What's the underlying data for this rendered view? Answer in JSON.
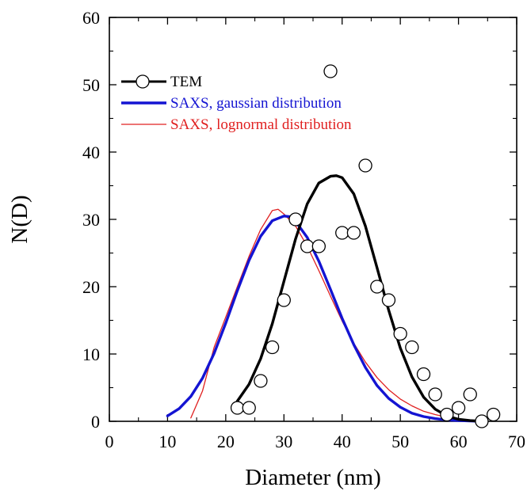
{
  "chart_data": {
    "type": "scatter",
    "title": "",
    "xlabel": "Diameter (nm)",
    "ylabel": "N(D)",
    "xlim": [
      0,
      70
    ],
    "ylim": [
      0,
      60
    ],
    "xticks": [
      0,
      10,
      20,
      30,
      40,
      50,
      60,
      70
    ],
    "yticks": [
      0,
      10,
      20,
      30,
      40,
      50,
      60
    ],
    "xtick_labels": [
      "0",
      "10",
      "20",
      "30",
      "40",
      "50",
      "60",
      "70"
    ],
    "ytick_labels": [
      "0",
      "10",
      "20",
      "30",
      "40",
      "50",
      "60"
    ],
    "grid": false,
    "legend_position": "top-left",
    "series": [
      {
        "name": "TEM",
        "kind": "markers-and-line",
        "color": "#000000",
        "points": {
          "x": [
            22,
            24,
            26,
            28,
            30,
            32,
            34,
            36,
            38,
            40,
            42,
            44,
            46,
            48,
            50,
            52,
            54,
            56,
            58,
            60,
            62,
            64,
            66
          ],
          "y": [
            2,
            2,
            6,
            11,
            18,
            30,
            26,
            26,
            52,
            28,
            28,
            38,
            20,
            18,
            13,
            11,
            7,
            4,
            1,
            2,
            4,
            0,
            1
          ]
        },
        "fit": {
          "x": [
            22,
            24,
            26,
            28,
            30,
            32,
            34,
            36,
            38,
            39,
            40,
            42,
            44,
            46,
            48,
            50,
            52,
            54,
            56,
            58,
            60,
            62,
            64
          ],
          "y": [
            3.0,
            5.5,
            9.3,
            14.5,
            20.8,
            27.1,
            32.3,
            35.4,
            36.4,
            36.5,
            36.2,
            33.8,
            29.0,
            22.8,
            16.5,
            10.9,
            6.6,
            3.6,
            1.8,
            0.8,
            0.3,
            0.1,
            0.0
          ]
        }
      },
      {
        "name": "SAXS, gaussian distribution",
        "kind": "line",
        "color": "#1414d2",
        "x": [
          10,
          12,
          14,
          16,
          18,
          20,
          22,
          24,
          26,
          28,
          30,
          31,
          32,
          34,
          36,
          38,
          40,
          42,
          44,
          46,
          48,
          50,
          52,
          54,
          56,
          58,
          60,
          62,
          64
        ],
        "y": [
          0.8,
          1.9,
          3.7,
          6.4,
          10.1,
          14.6,
          19.4,
          23.9,
          27.5,
          29.8,
          30.5,
          30.4,
          29.7,
          27.3,
          23.8,
          19.6,
          15.3,
          11.4,
          8.0,
          5.3,
          3.4,
          2.1,
          1.2,
          0.7,
          0.4,
          0.2,
          0.1,
          0.05,
          0.0
        ]
      },
      {
        "name": "SAXS, lognormal distribution",
        "kind": "line",
        "color": "#e02020",
        "x": [
          14,
          16,
          18,
          20,
          22,
          24,
          26,
          28,
          29,
          30,
          32,
          34,
          36,
          38,
          40,
          42,
          44,
          46,
          48,
          50,
          52,
          54,
          56,
          58,
          60,
          62,
          64
        ],
        "y": [
          0.5,
          4.5,
          11.0,
          15.5,
          20.0,
          24.5,
          28.5,
          31.3,
          31.5,
          30.8,
          29.0,
          26.0,
          22.4,
          18.6,
          14.9,
          11.6,
          8.8,
          6.5,
          4.7,
          3.3,
          2.3,
          1.5,
          1.0,
          0.6,
          0.3,
          0.15,
          0.05
        ]
      }
    ]
  }
}
